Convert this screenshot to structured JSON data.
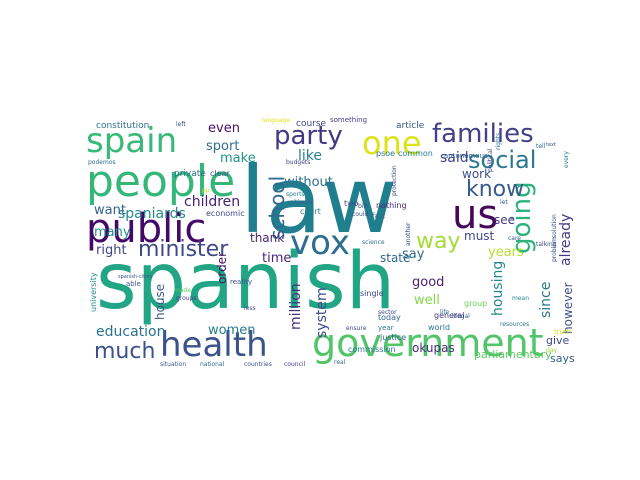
{
  "wordcloud": {
    "words": [
      {
        "text": "spanish",
        "color": "#21a585"
      },
      {
        "text": "law",
        "color": "#1f7f8e"
      },
      {
        "text": "people",
        "color": "#35b779"
      },
      {
        "text": "public",
        "color": "#440a68"
      },
      {
        "text": "government",
        "color": "#52c569"
      },
      {
        "text": "health",
        "color": "#3b528b"
      },
      {
        "text": "spain",
        "color": "#38b977"
      },
      {
        "text": "vox",
        "color": "#2e6e8e"
      },
      {
        "text": "one",
        "color": "#dde318"
      },
      {
        "text": "party",
        "color": "#443983"
      },
      {
        "text": "families",
        "color": "#424086"
      },
      {
        "text": "social",
        "color": "#2a788e"
      },
      {
        "text": "us",
        "color": "#46075a"
      },
      {
        "text": "going",
        "color": "#2db27d"
      },
      {
        "text": "minister",
        "color": "#3e4989"
      },
      {
        "text": "know",
        "color": "#375b8d"
      },
      {
        "text": "way",
        "color": "#a5db36"
      },
      {
        "text": "much",
        "color": "#3b518b"
      },
      {
        "text": "school",
        "color": "#31688e"
      },
      {
        "text": "spaniards",
        "color": "#238a8d"
      },
      {
        "text": "children",
        "color": "#482173"
      },
      {
        "text": "education",
        "color": "#2c728e"
      },
      {
        "text": "million",
        "color": "#46327e"
      },
      {
        "text": "housing",
        "color": "#24868e"
      },
      {
        "text": "system",
        "color": "#3e4a89"
      },
      {
        "text": "since",
        "color": "#2a768e"
      },
      {
        "text": "already",
        "color": "#443b84"
      },
      {
        "text": "however",
        "color": "#3b528b"
      },
      {
        "text": "make",
        "color": "#1f968b"
      },
      {
        "text": "like",
        "color": "#27808e"
      },
      {
        "text": "sport",
        "color": "#2f6c8e"
      },
      {
        "text": "even",
        "color": "#471164"
      },
      {
        "text": "said",
        "color": "#423f85"
      },
      {
        "text": "work",
        "color": "#3b518b"
      },
      {
        "text": "without",
        "color": "#2d708e"
      },
      {
        "text": "many",
        "color": "#21918c"
      },
      {
        "text": "want",
        "color": "#33638d"
      },
      {
        "text": "right",
        "color": "#404387"
      },
      {
        "text": "order",
        "color": "#470e61"
      },
      {
        "text": "thank",
        "color": "#482575"
      },
      {
        "text": "time",
        "color": "#482576"
      },
      {
        "text": "say",
        "color": "#2e6d8e"
      },
      {
        "text": "state",
        "color": "#31688e"
      },
      {
        "text": "see",
        "color": "#443a83"
      },
      {
        "text": "years",
        "color": "#b5de2b"
      },
      {
        "text": "good",
        "color": "#481f70"
      },
      {
        "text": "well",
        "color": "#86d549"
      },
      {
        "text": "must",
        "color": "#3f4788"
      },
      {
        "text": "house",
        "color": "#38598c"
      },
      {
        "text": "women",
        "color": "#287c8e"
      },
      {
        "text": "okupas",
        "color": "#472d7b"
      },
      {
        "text": "parliamentary",
        "color": "#5ec962"
      },
      {
        "text": "give",
        "color": "#3e4c8a"
      },
      {
        "text": "says",
        "color": "#355e8d"
      },
      {
        "text": "constitution",
        "color": "#2d708e"
      },
      {
        "text": "course",
        "color": "#404688"
      },
      {
        "text": "something",
        "color": "#433e85"
      },
      {
        "text": "article",
        "color": "#38598c"
      },
      {
        "text": "left",
        "color": "#3e4a89"
      },
      {
        "text": "language",
        "color": "#dde318"
      },
      {
        "text": "private",
        "color": "#2e6f8e"
      },
      {
        "text": "clear",
        "color": "#39558c"
      },
      {
        "text": "economic",
        "color": "#3c4f8a"
      },
      {
        "text": "court",
        "color": "#2a778e"
      },
      {
        "text": "budgets",
        "color": "#414487"
      },
      {
        "text": "psoe",
        "color": "#2c738e"
      },
      {
        "text": "common",
        "color": "#26828e"
      },
      {
        "text": "nothing",
        "color": "#482979"
      },
      {
        "text": "fact",
        "color": "#2f6b8e"
      },
      {
        "text": "bill",
        "color": "#3f4889"
      },
      {
        "text": "could",
        "color": "#3d4d8a"
      },
      {
        "text": "university",
        "color": "#23898e"
      },
      {
        "text": "able",
        "color": "#3a548c"
      },
      {
        "text": "reality",
        "color": "#3a538b"
      },
      {
        "text": "groups",
        "color": "#433d84"
      },
      {
        "text": "made",
        "color": "#5ec962"
      },
      {
        "text": "less",
        "color": "#3d4e8a"
      },
      {
        "text": "year",
        "color": "#2a768e"
      },
      {
        "text": "today",
        "color": "#31688e"
      },
      {
        "text": "single",
        "color": "#3e4989"
      },
      {
        "text": "sector",
        "color": "#3f4788"
      },
      {
        "text": "justice",
        "color": "#38598c"
      },
      {
        "text": "general",
        "color": "#443983"
      },
      {
        "text": "world",
        "color": "#2a778e"
      },
      {
        "text": "group",
        "color": "#6ece58"
      },
      {
        "text": "illegal",
        "color": "#39568c"
      },
      {
        "text": "commission",
        "color": "#2a788e"
      },
      {
        "text": "situation",
        "color": "#3b528b"
      },
      {
        "text": "national",
        "color": "#2a778e"
      },
      {
        "text": "countries",
        "color": "#3c4f8a"
      },
      {
        "text": "council",
        "color": "#443983"
      },
      {
        "text": "ensure",
        "color": "#3f4788"
      },
      {
        "text": "real",
        "color": "#31688e"
      },
      {
        "text": "truth",
        "color": "#d2e21b"
      },
      {
        "text": "day",
        "color": "#95d840"
      },
      {
        "text": "resources",
        "color": "#2a788e"
      },
      {
        "text": "political",
        "color": "#3e4989"
      },
      {
        "text": "rights",
        "color": "#2e6d8e"
      },
      {
        "text": "talking",
        "color": "#3e4a89"
      },
      {
        "text": "solution",
        "color": "#3c4f8a"
      },
      {
        "text": "care",
        "color": "#375a8c"
      },
      {
        "text": "problem",
        "color": "#3b528b"
      },
      {
        "text": "autonomous",
        "color": "#31688e"
      },
      {
        "text": "podemos",
        "color": "#2f6c8e"
      },
      {
        "text": "sports",
        "color": "#27808e"
      },
      {
        "text": "citizens",
        "color": "#355f8d"
      },
      {
        "text": "science",
        "color": "#2c718e"
      },
      {
        "text": "two",
        "color": "#3e4a89"
      },
      {
        "text": "mean",
        "color": "#23898e"
      },
      {
        "text": "protection",
        "color": "#3e4989"
      },
      {
        "text": "another",
        "color": "#3f4788"
      },
      {
        "text": "spanish-cities",
        "color": "#3a538b"
      },
      {
        "text": "pp",
        "color": "#c2df23"
      },
      {
        "text": "tell",
        "color": "#30678d"
      },
      {
        "text": "every",
        "color": "#287d8e"
      },
      {
        "text": "life",
        "color": "#2c728e"
      },
      {
        "text": "text",
        "color": "#3c508b"
      },
      {
        "text": "let",
        "color": "#3b528b"
      }
    ]
  }
}
